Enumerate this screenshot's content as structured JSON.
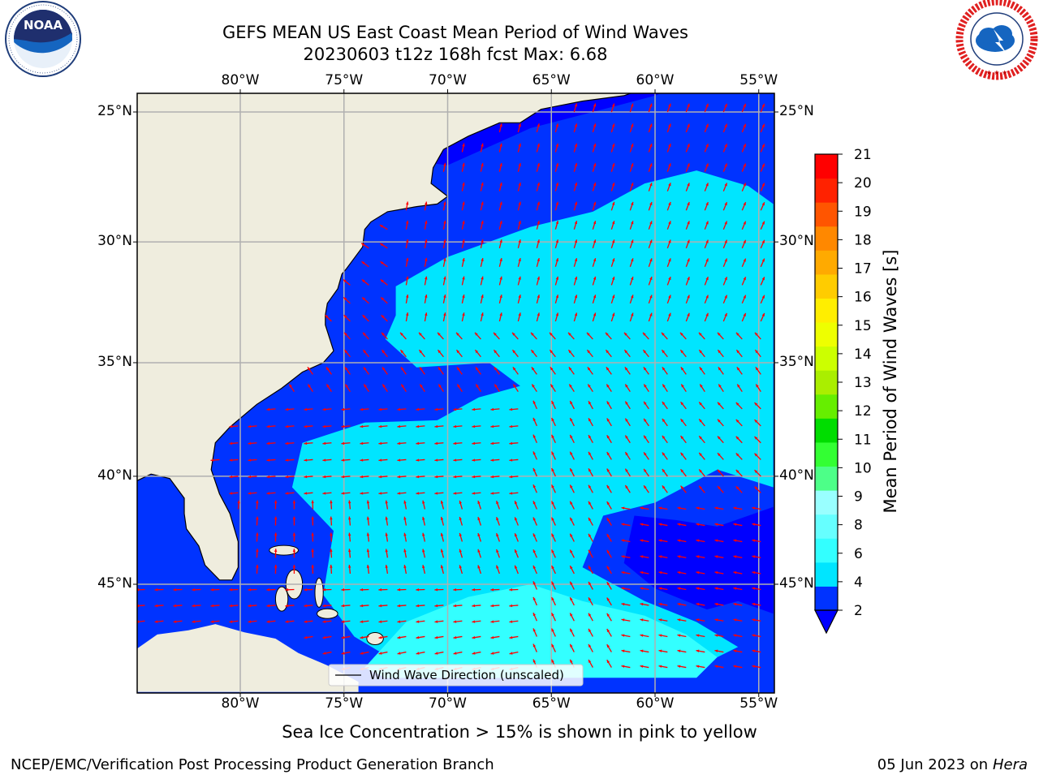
{
  "header": {
    "title_line1": "GEFS MEAN US East Coast Mean Period of Wind Waves",
    "title_line2": "20230603 t12z 168h fcst   Max: 6.68"
  },
  "logos": {
    "left": {
      "name": "NOAA",
      "ring_text": "NATIONAL OCEANIC AND ATMOSPHERIC ADMINISTRATION · U.S. DEPARTMENT OF COMMERCE"
    },
    "right": {
      "name": "National Weather Service",
      "ring_text": "NATIONAL WEATHER SERVICE"
    }
  },
  "map": {
    "lon_ticks": [
      "80°W",
      "75°W",
      "70°W",
      "65°W",
      "60°W",
      "55°W"
    ],
    "lat_ticks": [
      "45°N",
      "40°N",
      "35°N",
      "30°N",
      "25°N"
    ],
    "legend_label": "Wind Wave Direction (unscaled)",
    "colors": {
      "land": "#efedde",
      "vector": "#ff0000",
      "grid": "#b0b0b0"
    }
  },
  "colorbar": {
    "label": "Mean Period of Wind Waves [s]",
    "tick_labels": [
      "2",
      "4",
      "6",
      "8",
      "9",
      "10",
      "11",
      "12",
      "13",
      "14",
      "15",
      "16",
      "17",
      "18",
      "19",
      "20",
      "21"
    ],
    "colors": [
      "#0033ff",
      "#00e5ff",
      "#33ffff",
      "#66ffff",
      "#99ffff",
      "#4dff88",
      "#33ff33",
      "#00dd00",
      "#66ee00",
      "#aaee00",
      "#ccff00",
      "#eeff00",
      "#ffee00",
      "#ffcc00",
      "#ffaa00",
      "#ff8800",
      "#ff5500",
      "#ff2200",
      "#ff0000"
    ],
    "extend_color": "#0000ff"
  },
  "chart_data": {
    "type": "heatmap",
    "title": "GEFS MEAN US East Coast Mean Period of Wind Waves",
    "subtitle": "20230603 t12z 168h fcst   Max: 6.68",
    "xlim": [
      -85,
      -54.3
    ],
    "ylim": [
      20.5,
      45.8
    ],
    "x_ticks": [
      -80,
      -75,
      -70,
      -65,
      -60,
      -55
    ],
    "y_ticks": [
      25,
      30,
      35,
      40,
      45
    ],
    "colorbar_levels": [
      2,
      4,
      6,
      8,
      9,
      10,
      11,
      12,
      13,
      14,
      15,
      16,
      17,
      18,
      19,
      20,
      21
    ],
    "max_value": 6.68,
    "units": "s",
    "regions": [
      {
        "lon": [
          -83.9,
          -70.0
        ],
        "lat": [
          22.0,
          35.0
        ],
        "period_bin": "2-4"
      },
      {
        "lon": [
          -72.5,
          -54.3
        ],
        "lat": [
          34.0,
          44.0
        ],
        "period_bin": "2-4"
      },
      {
        "lon": [
          -61.0,
          -55.0
        ],
        "lat": [
          23.5,
          29.0
        ],
        "period_bin": "<2"
      },
      {
        "lon": [
          -74.0,
          -55.0
        ],
        "lat": [
          22.0,
          41.5
        ],
        "period_bin": "4-6"
      },
      {
        "lon": [
          -72.0,
          -55.0
        ],
        "lat": [
          21.0,
          36.0
        ],
        "period_bin": "6-8"
      }
    ],
    "grid": true,
    "legend_position": "bottom-center"
  },
  "subtitle": "Sea Ice Concentration > 15% is shown in pink to yellow",
  "footer": {
    "left": "NCEP/EMC/Verification Post Processing Product Generation Branch",
    "date": "05 Jun 2023 on",
    "machine": "Hera"
  }
}
